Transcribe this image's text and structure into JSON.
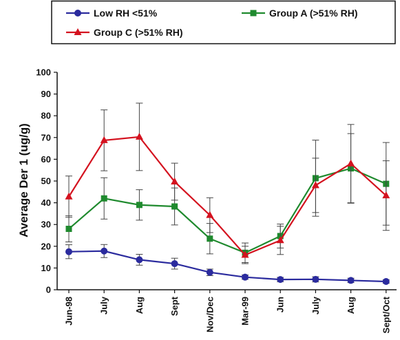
{
  "chart_data": {
    "type": "line",
    "title": "",
    "xlabel": "",
    "ylabel": "Average Der 1 (ug/g)",
    "ylim": [
      0,
      100
    ],
    "yticks": [
      0,
      10,
      20,
      30,
      40,
      50,
      60,
      70,
      80,
      90,
      100
    ],
    "grid": false,
    "legend_position": "top",
    "categories": [
      "Jun-98",
      "July",
      "Aug",
      "Sept",
      "Nov/Dec",
      "Mar-99",
      "Jun",
      "July",
      "Aug",
      "Sept/Oct"
    ],
    "series": [
      {
        "name": "Low RH <51%",
        "color": "#2b2b9e",
        "marker": "circle",
        "values": [
          17.5,
          17.8,
          13.8,
          12.0,
          8.0,
          5.8,
          4.7,
          4.8,
          4.3,
          3.8
        ],
        "error": [
          3.2,
          3.0,
          2.5,
          2.5,
          1.5,
          1.0,
          1.0,
          1.2,
          1.0,
          0.8
        ]
      },
      {
        "name": "Group A (>51% RH)",
        "color": "#1f8a2e",
        "marker": "square",
        "values": [
          28.0,
          42.0,
          39.0,
          38.3,
          23.5,
          17.0,
          24.7,
          51.3,
          55.8,
          48.7
        ],
        "error": [
          6.0,
          9.5,
          7.0,
          8.5,
          7.0,
          4.5,
          5.5,
          17.5,
          16.0,
          19.0
        ]
      },
      {
        "name": "Group C (>51% RH)",
        "color": "#d4121f",
        "marker": "triangle",
        "values": [
          42.8,
          68.7,
          70.3,
          49.7,
          34.3,
          16.0,
          22.7,
          48.0,
          58.0,
          43.3
        ],
        "error": [
          9.5,
          14.0,
          15.5,
          8.5,
          8.0,
          4.0,
          6.5,
          12.5,
          18.0,
          16.0
        ]
      }
    ]
  }
}
